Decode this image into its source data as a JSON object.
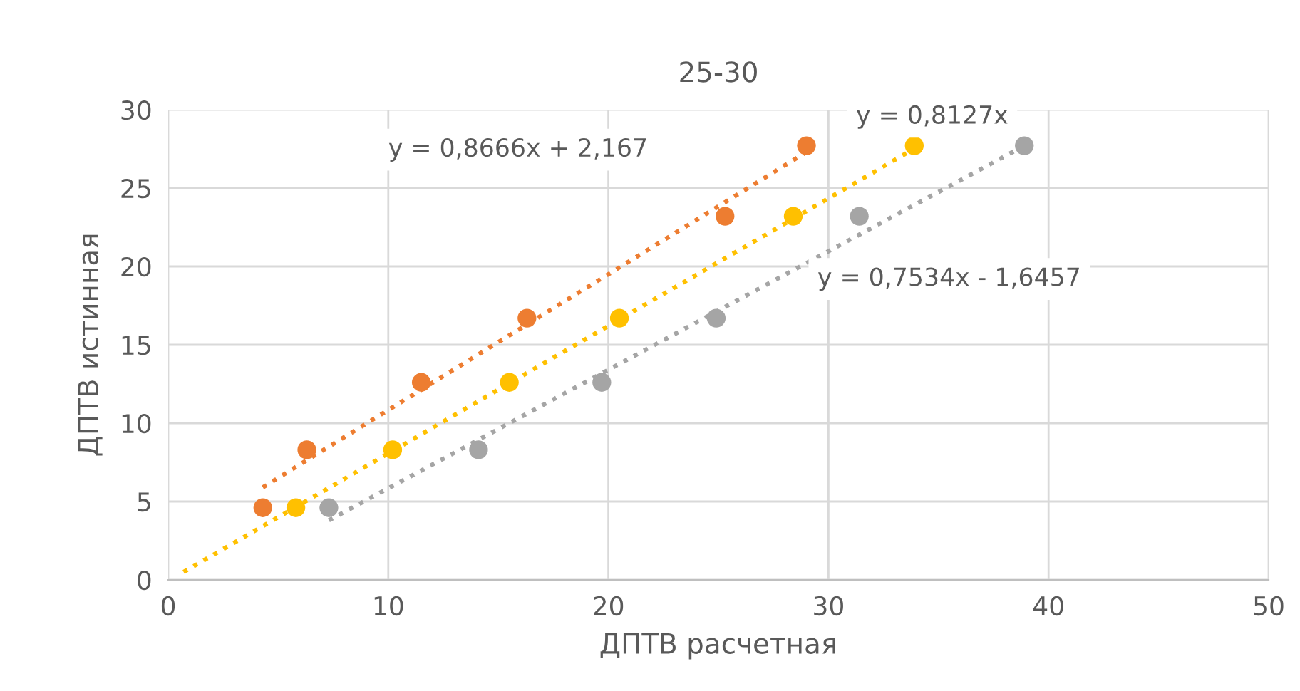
{
  "chart_data": {
    "type": "scatter",
    "title": "25-30",
    "xlabel": "ДПТВ расчетная",
    "ylabel": "ДПТВ истинная",
    "xlim": [
      0,
      50
    ],
    "xticks": [
      0,
      10,
      20,
      30,
      40,
      50
    ],
    "ylim": [
      0,
      30
    ],
    "yticks": [
      0,
      5,
      10,
      15,
      20,
      25,
      30
    ],
    "grid": true,
    "series": [
      {
        "marker": "circle",
        "color": "#ed7d31",
        "x": [
          4.3,
          6.3,
          11.5,
          16.3,
          25.3,
          29.0
        ],
        "values": [
          4.6,
          8.3,
          12.6,
          16.7,
          23.2,
          27.7
        ]
      },
      {
        "marker": "circle",
        "color": "#ffc000",
        "x": [
          5.8,
          10.2,
          15.5,
          20.5,
          28.4,
          33.9
        ],
        "values": [
          4.6,
          8.3,
          12.6,
          16.7,
          23.2,
          27.7
        ]
      },
      {
        "marker": "circle",
        "color": "#a5a5a5",
        "x": [
          7.3,
          14.1,
          19.7,
          24.9,
          31.4,
          38.9
        ],
        "values": [
          4.6,
          8.3,
          12.6,
          16.7,
          23.2,
          27.7
        ]
      },
      {
        "type": "line",
        "marker": "none",
        "line_style": "dotted",
        "color": "#ed7d31",
        "x": [
          4.3,
          29.0
        ],
        "values": [
          5.9,
          27.3
        ]
      },
      {
        "type": "line",
        "marker": "none",
        "line_style": "dotted",
        "color": "#ffc000",
        "x": [
          0.7,
          34.0
        ],
        "values": [
          0.5,
          27.6
        ]
      },
      {
        "type": "line",
        "marker": "none",
        "line_style": "dotted",
        "color": "#a5a5a5",
        "x": [
          7.3,
          38.9
        ],
        "values": [
          3.8,
          27.7
        ]
      }
    ],
    "annotations": [
      "y = 0,8666x + 2,167",
      "y = 0,8127x",
      "y = 0,7534x - 1,6457"
    ]
  }
}
